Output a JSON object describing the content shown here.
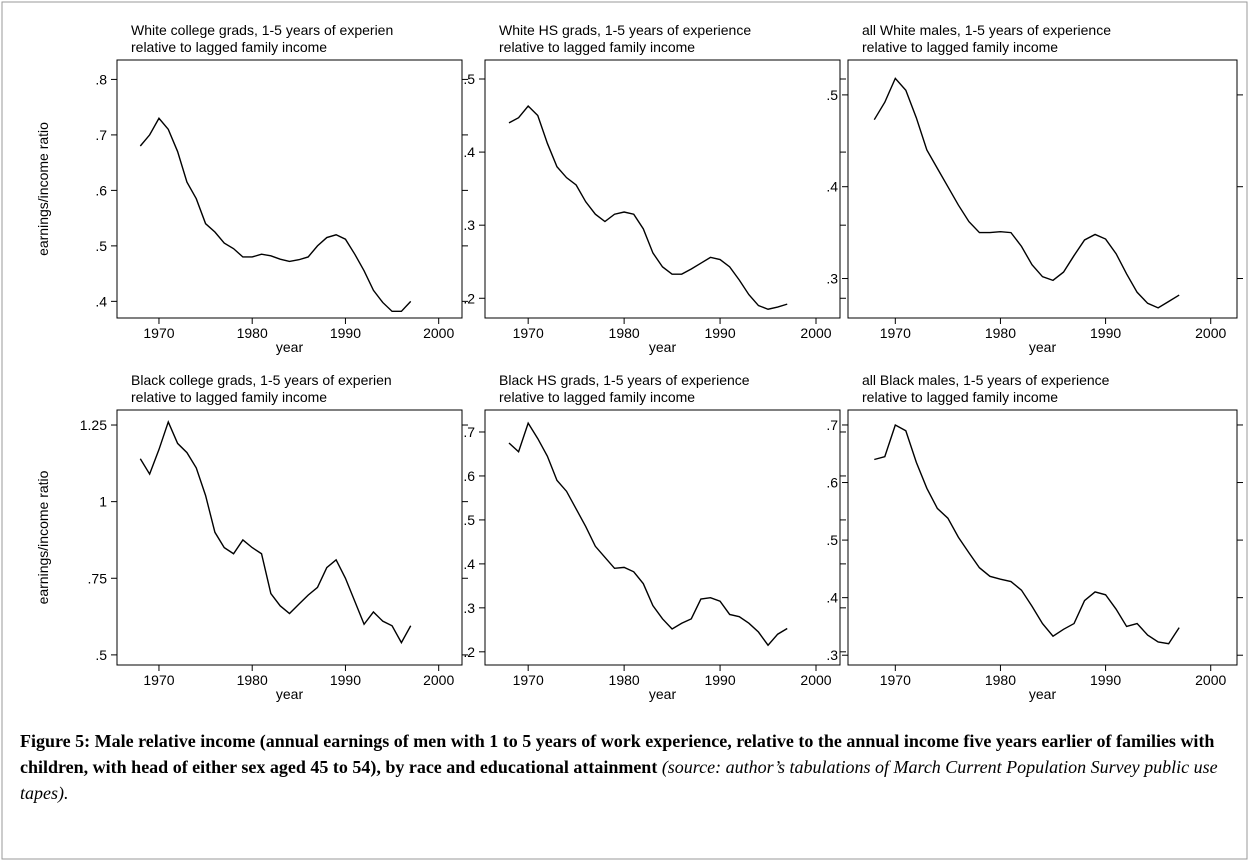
{
  "chart_data": [
    {
      "type": "line",
      "title": "White college grads, 1-5 years of experien",
      "subtitle": "relative to lagged family income",
      "ylabel": "earnings/income ratio",
      "xlabel": "year",
      "x": [
        1968,
        1969,
        1970,
        1971,
        1972,
        1973,
        1974,
        1975,
        1976,
        1977,
        1978,
        1979,
        1980,
        1981,
        1982,
        1983,
        1984,
        1985,
        1986,
        1987,
        1988,
        1989,
        1990,
        1991,
        1992,
        1993,
        1994,
        1995,
        1996,
        1997
      ],
      "values": [
        0.68,
        0.7,
        0.73,
        0.71,
        0.67,
        0.615,
        0.585,
        0.54,
        0.525,
        0.505,
        0.495,
        0.48,
        0.48,
        0.485,
        0.482,
        0.476,
        0.472,
        0.475,
        0.48,
        0.5,
        0.515,
        0.52,
        0.512,
        0.485,
        0.455,
        0.42,
        0.398,
        0.382,
        0.382,
        0.4
      ],
      "color": "#000000",
      "xlim": [
        1965.5,
        2002.5
      ],
      "xticks": [
        1970,
        1980,
        1990,
        2000
      ],
      "ylim": [
        0.37,
        0.835
      ],
      "yticks": [
        {
          "value": 0.4,
          "label": ".4"
        },
        {
          "value": 0.5,
          "label": ".5"
        },
        {
          "value": 0.6,
          "label": ".6"
        },
        {
          "value": 0.7,
          "label": ".7"
        },
        {
          "value": 0.8,
          "label": ".8"
        }
      ]
    },
    {
      "type": "line",
      "title": "White HS grads, 1-5 years of experience",
      "subtitle": "relative to lagged family income",
      "xlabel": "year",
      "x": [
        1968,
        1969,
        1970,
        1971,
        1972,
        1973,
        1974,
        1975,
        1976,
        1977,
        1978,
        1979,
        1980,
        1981,
        1982,
        1983,
        1984,
        1985,
        1986,
        1987,
        1988,
        1989,
        1990,
        1991,
        1992,
        1993,
        1994,
        1995,
        1996,
        1997
      ],
      "values": [
        0.44,
        0.447,
        0.463,
        0.45,
        0.412,
        0.38,
        0.365,
        0.355,
        0.332,
        0.315,
        0.305,
        0.315,
        0.318,
        0.315,
        0.295,
        0.262,
        0.243,
        0.233,
        0.233,
        0.24,
        0.248,
        0.256,
        0.253,
        0.243,
        0.225,
        0.205,
        0.19,
        0.185,
        0.188,
        0.192
      ],
      "color": "#000000",
      "xlim": [
        1965.5,
        2002.5
      ],
      "xticks": [
        1970,
        1980,
        1990,
        2000
      ],
      "ylim": [
        0.173,
        0.526
      ],
      "yticks": [
        {
          "value": 0.2,
          "label": ".2"
        },
        {
          "value": 0.3,
          "label": ".3"
        },
        {
          "value": 0.4,
          "label": ".4"
        },
        {
          "value": 0.5,
          "label": ".5"
        }
      ]
    },
    {
      "type": "line",
      "title": "all White males, 1-5 years of experience",
      "subtitle": "relative to lagged family income",
      "xlabel": "year",
      "x": [
        1968,
        1969,
        1970,
        1971,
        1972,
        1973,
        1974,
        1975,
        1976,
        1977,
        1978,
        1979,
        1980,
        1981,
        1982,
        1983,
        1984,
        1985,
        1986,
        1987,
        1988,
        1989,
        1990,
        1991,
        1992,
        1993,
        1994,
        1995,
        1996,
        1997
      ],
      "values": [
        0.473,
        0.492,
        0.518,
        0.505,
        0.475,
        0.44,
        0.42,
        0.4,
        0.38,
        0.362,
        0.35,
        0.35,
        0.351,
        0.35,
        0.335,
        0.315,
        0.302,
        0.298,
        0.307,
        0.325,
        0.342,
        0.348,
        0.343,
        0.327,
        0.305,
        0.285,
        0.273,
        0.268,
        0.275,
        0.282
      ],
      "color": "#000000",
      "xlim": [
        1965.5,
        2002.5
      ],
      "xticks": [
        1970,
        1980,
        1990,
        2000
      ],
      "ylim": [
        0.257,
        0.538
      ],
      "yticks": [
        {
          "value": 0.3,
          "label": ".3"
        },
        {
          "value": 0.4,
          "label": ".4"
        },
        {
          "value": 0.5,
          "label": ".5"
        }
      ]
    },
    {
      "type": "line",
      "title": "Black college grads, 1-5 years of experien",
      "subtitle": "relative to lagged family income",
      "ylabel": "earnings/income ratio",
      "xlabel": "year",
      "x": [
        1968,
        1969,
        1970,
        1971,
        1972,
        1973,
        1974,
        1975,
        1976,
        1977,
        1978,
        1979,
        1980,
        1981,
        1982,
        1983,
        1984,
        1985,
        1986,
        1987,
        1988,
        1989,
        1990,
        1991,
        1992,
        1993,
        1994,
        1995,
        1996,
        1997
      ],
      "values": [
        1.14,
        1.09,
        1.17,
        1.26,
        1.19,
        1.16,
        1.11,
        1.02,
        0.9,
        0.85,
        0.83,
        0.875,
        0.85,
        0.83,
        0.7,
        0.66,
        0.635,
        0.665,
        0.695,
        0.72,
        0.785,
        0.81,
        0.75,
        0.675,
        0.6,
        0.64,
        0.61,
        0.595,
        0.54,
        0.595
      ],
      "color": "#000000",
      "xlim": [
        1965.5,
        2002.5
      ],
      "xticks": [
        1970,
        1980,
        1990,
        2000
      ],
      "ylim": [
        0.467,
        1.299
      ],
      "yticks": [
        {
          "value": 0.5,
          "label": ".5"
        },
        {
          "value": 0.75,
          "label": ".75"
        },
        1,
        1.25
      ]
    },
    {
      "type": "line",
      "title": "Black HS grads, 1-5 years of experience",
      "subtitle": "relative to lagged family income",
      "xlabel": "year",
      "x": [
        1968,
        1969,
        1970,
        1971,
        1972,
        1973,
        1974,
        1975,
        1976,
        1977,
        1978,
        1979,
        1980,
        1981,
        1982,
        1983,
        1984,
        1985,
        1986,
        1987,
        1988,
        1989,
        1990,
        1991,
        1992,
        1993,
        1994,
        1995,
        1996,
        1997
      ],
      "values": [
        0.675,
        0.655,
        0.72,
        0.685,
        0.645,
        0.59,
        0.565,
        0.525,
        0.485,
        0.44,
        0.415,
        0.39,
        0.392,
        0.382,
        0.355,
        0.305,
        0.275,
        0.252,
        0.265,
        0.275,
        0.32,
        0.323,
        0.315,
        0.285,
        0.28,
        0.265,
        0.245,
        0.215,
        0.24,
        0.253
      ],
      "color": "#000000",
      "xlim": [
        1965.5,
        2002.5
      ],
      "xticks": [
        1970,
        1980,
        1990,
        2000
      ],
      "ylim": [
        0.17,
        0.75
      ],
      "yticks": [
        {
          "value": 0.2,
          "label": ".2"
        },
        {
          "value": 0.3,
          "label": ".3"
        },
        {
          "value": 0.4,
          "label": ".4"
        },
        {
          "value": 0.5,
          "label": ".5"
        },
        {
          "value": 0.6,
          "label": ".6"
        },
        {
          "value": 0.7,
          "label": ".7"
        }
      ]
    },
    {
      "type": "line",
      "title": "all Black males, 1-5 years of experience",
      "subtitle": "relative to lagged family income",
      "xlabel": "year",
      "x": [
        1968,
        1969,
        1970,
        1971,
        1972,
        1973,
        1974,
        1975,
        1976,
        1977,
        1978,
        1979,
        1980,
        1981,
        1982,
        1983,
        1984,
        1985,
        1986,
        1987,
        1988,
        1989,
        1990,
        1991,
        1992,
        1993,
        1994,
        1995,
        1996,
        1997
      ],
      "values": [
        0.64,
        0.645,
        0.7,
        0.69,
        0.635,
        0.59,
        0.555,
        0.538,
        0.505,
        0.478,
        0.452,
        0.437,
        0.432,
        0.428,
        0.413,
        0.385,
        0.355,
        0.333,
        0.345,
        0.355,
        0.395,
        0.41,
        0.405,
        0.38,
        0.35,
        0.355,
        0.335,
        0.323,
        0.32,
        0.348
      ],
      "color": "#000000",
      "xlim": [
        1965.5,
        2002.5
      ],
      "xticks": [
        1970,
        1980,
        1990,
        2000
      ],
      "ylim": [
        0.283,
        0.726
      ],
      "yticks": [
        {
          "value": 0.3,
          "label": ".3"
        },
        {
          "value": 0.4,
          "label": ".4"
        },
        {
          "value": 0.5,
          "label": ".5"
        },
        {
          "value": 0.6,
          "label": ".6"
        },
        {
          "value": 0.7,
          "label": ".7"
        }
      ]
    }
  ],
  "caption": {
    "text": "Figure 5: Male relative income (annual earnings of men with 1 to 5 years of work experience, relative to the annual income five years earlier of families with children, with head of either sex aged 45 to 54), by race and educational attainment",
    "source": " (source: author’s tabulations of March Current Population Survey public use tapes)."
  }
}
